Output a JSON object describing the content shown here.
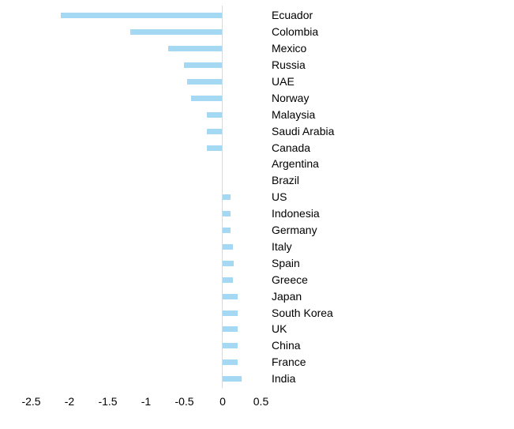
{
  "chart_data": {
    "type": "bar",
    "orientation": "horizontal",
    "title": "",
    "xlabel": "",
    "ylabel": "",
    "grid": false,
    "legend": false,
    "xlim": [
      -2.5,
      0.5
    ],
    "categories": [
      "Ecuador",
      "Colombia",
      "Mexico",
      "Russia",
      "UAE",
      "Norway",
      "Malaysia",
      "Saudi Arabia",
      "Canada",
      "Argentina",
      "Brazil",
      "US",
      "Indonesia",
      "Germany",
      "Italy",
      "Spain",
      "Greece",
      "Japan",
      "South Korea",
      "UK",
      "China",
      "France",
      "India"
    ],
    "values": [
      -2.1,
      -1.2,
      -0.7,
      -0.5,
      -0.45,
      -0.4,
      -0.2,
      -0.2,
      -0.2,
      0,
      0,
      0.1,
      0.1,
      0.1,
      0.13,
      0.14,
      0.13,
      0.2,
      0.2,
      0.2,
      0.2,
      0.2,
      0.25
    ],
    "x_tick_labels": [
      "-2.5",
      "-2",
      "-1.5",
      "-1",
      "-0.5",
      "0",
      "0.5"
    ],
    "x_tick_values": [
      -2.5,
      -2,
      -1.5,
      -1,
      -0.5,
      0,
      0.5
    ],
    "colors": {
      "bar_fill": "#a5d8f3",
      "axis_line": "#d9d9d9",
      "label_text": "#000000",
      "background": "#ffffff"
    }
  }
}
